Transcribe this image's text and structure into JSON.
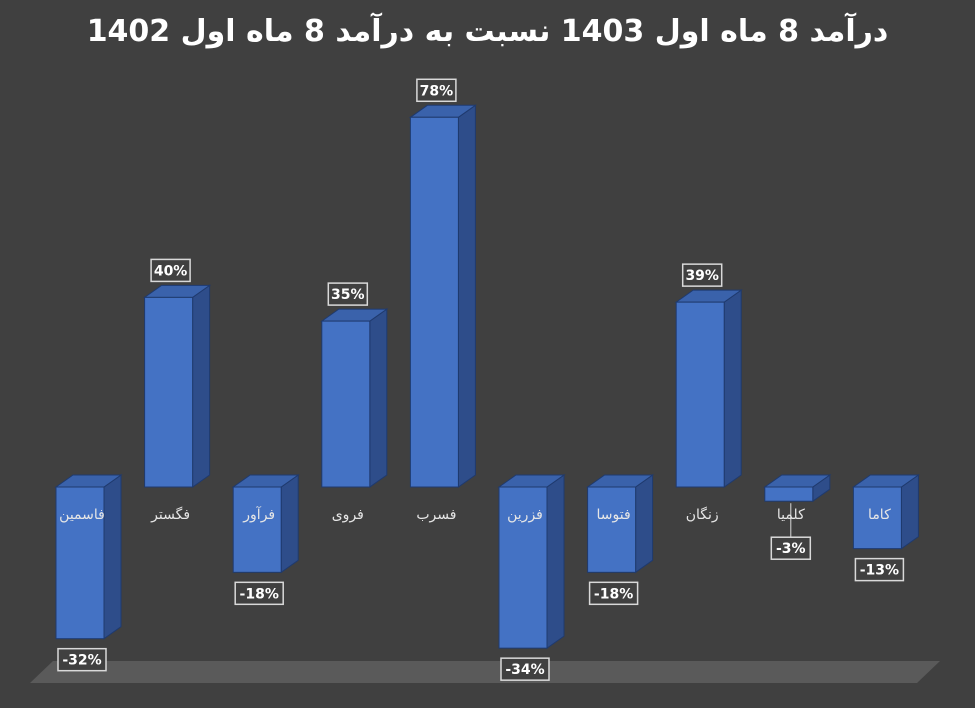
{
  "chart_data": {
    "type": "bar",
    "title": "درآمد 8 ماه اول 1403 نسبت به درآمد 8 ماه اول 1402",
    "categories": [
      "فاسمین",
      "فگستر",
      "فرآور",
      "فروی",
      "فسرب",
      "فزرین",
      "فتوسا",
      "زنگان",
      "کلمیا",
      "کاما"
    ],
    "values": [
      -32,
      40,
      -18,
      35,
      78,
      -34,
      -18,
      39,
      -3,
      -13
    ],
    "value_suffix": "%",
    "style": "3d-column",
    "grid": false,
    "legend": "none",
    "colors": {
      "bar_front": "#4472c4",
      "bar_side": "#2e4d8a",
      "bar_top": "#3a62ab",
      "bar_stroke": "#1f3a6e",
      "floor": "#5a5a5a",
      "label_bg": "#404040",
      "label_border": "#d9d9d9",
      "text": "#ffffff",
      "category_text": "#e6e6e6"
    }
  }
}
